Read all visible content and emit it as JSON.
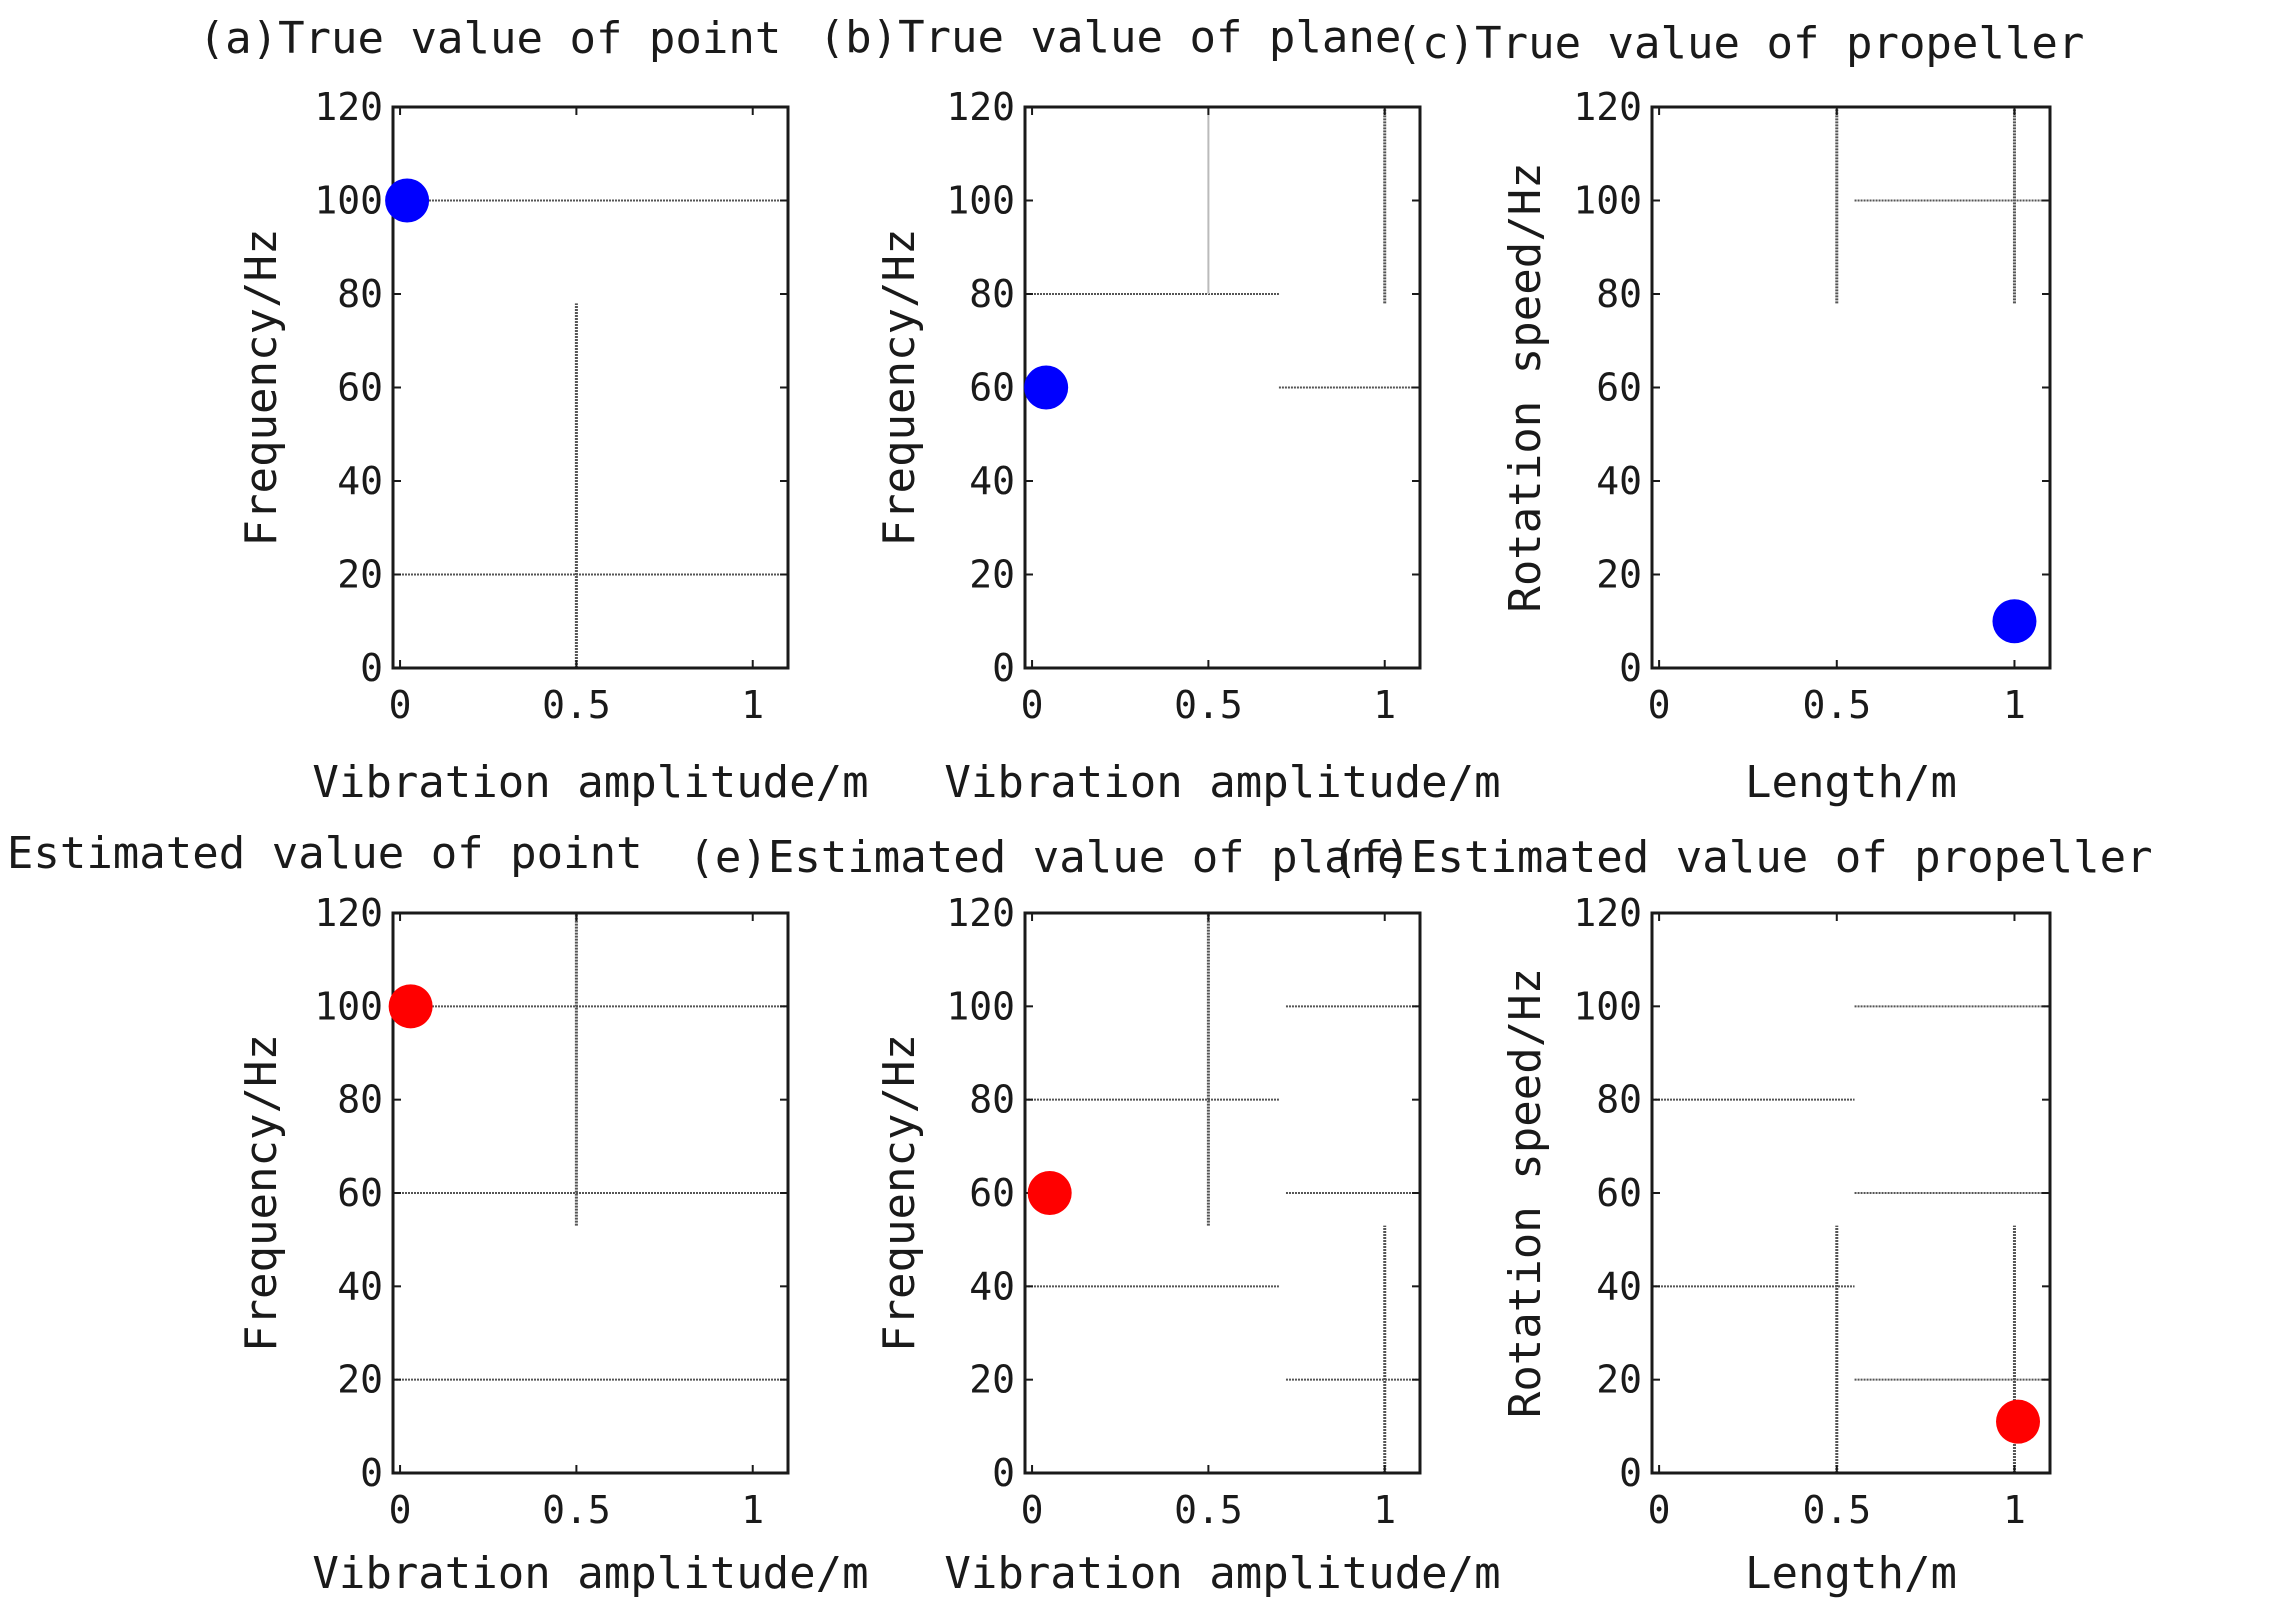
{
  "chart_data": [
    {
      "type": "scatter",
      "title": "(a)True value of point",
      "xlabel": "Vibration amplitude/m",
      "ylabel": "Frequency/Hz",
      "xlim": [
        -0.02,
        1.1
      ],
      "ylim": [
        0,
        120
      ],
      "xticks": [
        "0",
        "0.5",
        "1"
      ],
      "yticks": [
        "0",
        "20",
        "40",
        "60",
        "80",
        "100",
        "120"
      ],
      "marker_color": "#0000ff",
      "points": [
        {
          "x": 0.02,
          "y": 100
        }
      ],
      "segments": [
        {
          "x1": -0.02,
          "y1": 100,
          "x2": 1.1,
          "y2": 100,
          "style": "h"
        },
        {
          "x1": -0.02,
          "y1": 20,
          "x2": 1.1,
          "y2": 20,
          "style": "h"
        },
        {
          "x1": 0.5,
          "y1": 0,
          "x2": 0.5,
          "y2": 78,
          "style": "v"
        }
      ]
    },
    {
      "type": "scatter",
      "title": "(b)True value of plane",
      "xlabel": "Vibration amplitude/m",
      "ylabel": "Frequency/Hz",
      "xlim": [
        -0.02,
        1.1
      ],
      "ylim": [
        0,
        120
      ],
      "xticks": [
        "0",
        "0.5",
        "1"
      ],
      "yticks": [
        "0",
        "20",
        "40",
        "60",
        "80",
        "100",
        "120"
      ],
      "marker_color": "#0000ff",
      "points": [
        {
          "x": 0.04,
          "y": 60
        }
      ],
      "segments": [
        {
          "x1": -0.02,
          "y1": 80,
          "x2": 0.7,
          "y2": 80,
          "style": "h"
        },
        {
          "x1": 0.7,
          "y1": 60,
          "x2": 1.1,
          "y2": 60,
          "style": "h"
        },
        {
          "x1": 0.5,
          "y1": 80,
          "x2": 0.5,
          "y2": 120,
          "style": "vl"
        },
        {
          "x1": 1.0,
          "y1": 78,
          "x2": 1.0,
          "y2": 120,
          "style": "v"
        }
      ]
    },
    {
      "type": "scatter",
      "title": "(c)True value of propeller",
      "xlabel": "Length/m",
      "ylabel": "Rotation speed/Hz",
      "xlim": [
        -0.02,
        1.1
      ],
      "ylim": [
        0,
        120
      ],
      "xticks": [
        "0",
        "0.5",
        "1"
      ],
      "yticks": [
        "0",
        "20",
        "40",
        "60",
        "80",
        "100",
        "120"
      ],
      "marker_color": "#0000ff",
      "points": [
        {
          "x": 1.0,
          "y": 10
        }
      ],
      "segments": [
        {
          "x1": 0.55,
          "y1": 100,
          "x2": 1.1,
          "y2": 100,
          "style": "h"
        },
        {
          "x1": 0.5,
          "y1": 78,
          "x2": 0.5,
          "y2": 120,
          "style": "v"
        },
        {
          "x1": 1.0,
          "y1": 78,
          "x2": 1.0,
          "y2": 120,
          "style": "v"
        }
      ]
    },
    {
      "type": "scatter",
      "title": "(d)Estimated value of point",
      "xlabel": "Vibration amplitude/m",
      "ylabel": "Frequency/Hz",
      "xlim": [
        -0.02,
        1.1
      ],
      "ylim": [
        0,
        120
      ],
      "xticks": [
        "0",
        "0.5",
        "1"
      ],
      "yticks": [
        "0",
        "20",
        "40",
        "60",
        "80",
        "100",
        "120"
      ],
      "marker_color": "#ff0000",
      "points": [
        {
          "x": 0.03,
          "y": 100
        }
      ],
      "segments": [
        {
          "x1": -0.02,
          "y1": 100,
          "x2": 1.1,
          "y2": 100,
          "style": "h"
        },
        {
          "x1": -0.02,
          "y1": 60,
          "x2": 1.1,
          "y2": 60,
          "style": "h"
        },
        {
          "x1": -0.02,
          "y1": 20,
          "x2": 1.1,
          "y2": 20,
          "style": "h"
        },
        {
          "x1": 0.5,
          "y1": 53,
          "x2": 0.5,
          "y2": 120,
          "style": "v"
        }
      ]
    },
    {
      "type": "scatter",
      "title": "(e)Estimated value of plane",
      "xlabel": "Vibration amplitude/m",
      "ylabel": "Frequency/Hz",
      "xlim": [
        -0.02,
        1.1
      ],
      "ylim": [
        0,
        120
      ],
      "xticks": [
        "0",
        "0.5",
        "1"
      ],
      "yticks": [
        "0",
        "20",
        "40",
        "60",
        "80",
        "100",
        "120"
      ],
      "marker_color": "#ff0000",
      "points": [
        {
          "x": 0.05,
          "y": 60
        }
      ],
      "segments": [
        {
          "x1": -0.02,
          "y1": 80,
          "x2": 0.7,
          "y2": 80,
          "style": "h"
        },
        {
          "x1": -0.02,
          "y1": 40,
          "x2": 0.7,
          "y2": 40,
          "style": "h"
        },
        {
          "x1": 0.72,
          "y1": 100,
          "x2": 1.1,
          "y2": 100,
          "style": "h"
        },
        {
          "x1": 0.72,
          "y1": 60,
          "x2": 1.1,
          "y2": 60,
          "style": "h"
        },
        {
          "x1": 0.72,
          "y1": 20,
          "x2": 1.1,
          "y2": 20,
          "style": "h"
        },
        {
          "x1": 0.5,
          "y1": 53,
          "x2": 0.5,
          "y2": 120,
          "style": "v"
        },
        {
          "x1": 1.0,
          "y1": 0,
          "x2": 1.0,
          "y2": 53,
          "style": "v"
        }
      ]
    },
    {
      "type": "scatter",
      "title": "(f)Estimated value of propeller",
      "xlabel": "Length/m",
      "ylabel": "Rotation speed/Hz",
      "xlim": [
        -0.02,
        1.1
      ],
      "ylim": [
        0,
        120
      ],
      "xticks": [
        "0",
        "0.5",
        "1"
      ],
      "yticks": [
        "0",
        "20",
        "40",
        "60",
        "80",
        "100",
        "120"
      ],
      "marker_color": "#ff0000",
      "points": [
        {
          "x": 1.01,
          "y": 11
        }
      ],
      "segments": [
        {
          "x1": 0.55,
          "y1": 100,
          "x2": 1.1,
          "y2": 100,
          "style": "h"
        },
        {
          "x1": -0.02,
          "y1": 80,
          "x2": 0.55,
          "y2": 80,
          "style": "h"
        },
        {
          "x1": 0.55,
          "y1": 60,
          "x2": 1.1,
          "y2": 60,
          "style": "h"
        },
        {
          "x1": -0.02,
          "y1": 40,
          "x2": 0.55,
          "y2": 40,
          "style": "h"
        },
        {
          "x1": 0.55,
          "y1": 20,
          "x2": 1.1,
          "y2": 20,
          "style": "h"
        },
        {
          "x1": 0.5,
          "y1": 0,
          "x2": 0.5,
          "y2": 53,
          "style": "v"
        },
        {
          "x1": 1.0,
          "y1": 0,
          "x2": 1.0,
          "y2": 53,
          "style": "v"
        }
      ]
    }
  ]
}
